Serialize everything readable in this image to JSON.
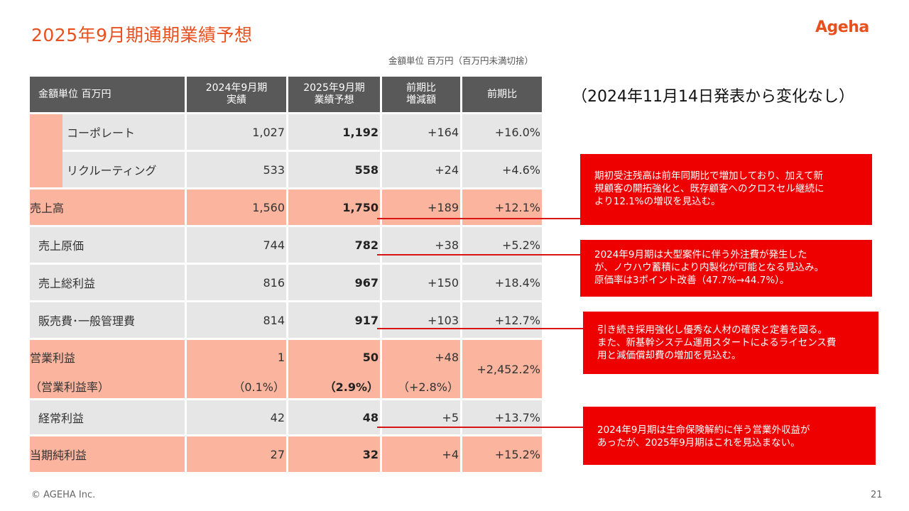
{
  "title": "2025年9月期通期業績予想",
  "logo": "Ageha",
  "unit_note": "金額単位 百万円（百万円未満切捨）",
  "no_change_note": "（2024年11月14日発表から変化なし）",
  "table": {
    "headers": {
      "label": "金額単位 百万円",
      "fy2024_line1": "2024年9月期",
      "fy2024_line2": "実績",
      "fy2025_line1": "2025年9月期",
      "fy2025_line2": "業績予想",
      "diff_line1": "前期比",
      "diff_line2": "増減額",
      "ratio": "前期比"
    },
    "rows": [
      {
        "label": "コーポレート",
        "fy2024": "1,027",
        "fy2025": "1,192",
        "diff": "+164",
        "ratio": "+16.0%"
      },
      {
        "label": "リクルーティング",
        "fy2024": "533",
        "fy2025": "558",
        "diff": "+24",
        "ratio": "+4.6%"
      },
      {
        "label": "売上高",
        "fy2024": "1,560",
        "fy2025": "1,750",
        "diff": "+189",
        "ratio": "+12.1%"
      },
      {
        "label": "売上原価",
        "fy2024": "744",
        "fy2025": "782",
        "diff": "+38",
        "ratio": "+5.2%"
      },
      {
        "label": "売上総利益",
        "fy2024": "816",
        "fy2025": "967",
        "diff": "+150",
        "ratio": "+18.4%"
      },
      {
        "label": "販売費･一般管理費",
        "fy2024": "814",
        "fy2025": "917",
        "diff": "+103",
        "ratio": "+12.7%"
      },
      {
        "label": "営業利益",
        "fy2024": "1",
        "fy2025": "50",
        "diff": "+48",
        "ratio": "+2,452.2%"
      },
      {
        "label": "（営業利益率）",
        "fy2024": "（0.1%）",
        "fy2025": "（2.9%）",
        "diff": "（+2.8%）"
      },
      {
        "label": "経常利益",
        "fy2024": "42",
        "fy2025": "48",
        "diff": "+5",
        "ratio": "+13.7%"
      },
      {
        "label": "当期純利益",
        "fy2024": "27",
        "fy2025": "32",
        "diff": "+4",
        "ratio": "+15.2%"
      }
    ]
  },
  "callouts": [
    {
      "lines": [
        "期初受注残高は前年同期比で増加しており、加えて新",
        "規顧客の開拓強化と、既存顧客へのクロスセル継続に",
        "より12.1%の増収を見込む。"
      ]
    },
    {
      "lines": [
        "2024年9月期は大型案件に伴う外注費が発生した",
        "が、ノウハウ蓄積により内製化が可能となる見込み。",
        "原価率は3ポイント改善（47.7%→44.7%）。"
      ]
    },
    {
      "lines": [
        "引き続き採用強化し優秀な人材の確保と定着を図る。",
        "また、新基幹システム運用スタートによるライセンス費",
        "用と減価償却費の増加を見込む。"
      ]
    },
    {
      "lines": [
        "2024年9月期は生命保険解約に伴う営業外収益が",
        "あったが、2025年9月期はこれを見込まない。"
      ]
    }
  ],
  "colors": {
    "accent": "#e8501e",
    "header_bg": "#595959",
    "highlight": "#fbb49e",
    "row_gray": "#e6e6e6",
    "callout": "#ee0000"
  },
  "footer": {
    "copyright": "© AGEHA Inc.",
    "page": "21"
  }
}
